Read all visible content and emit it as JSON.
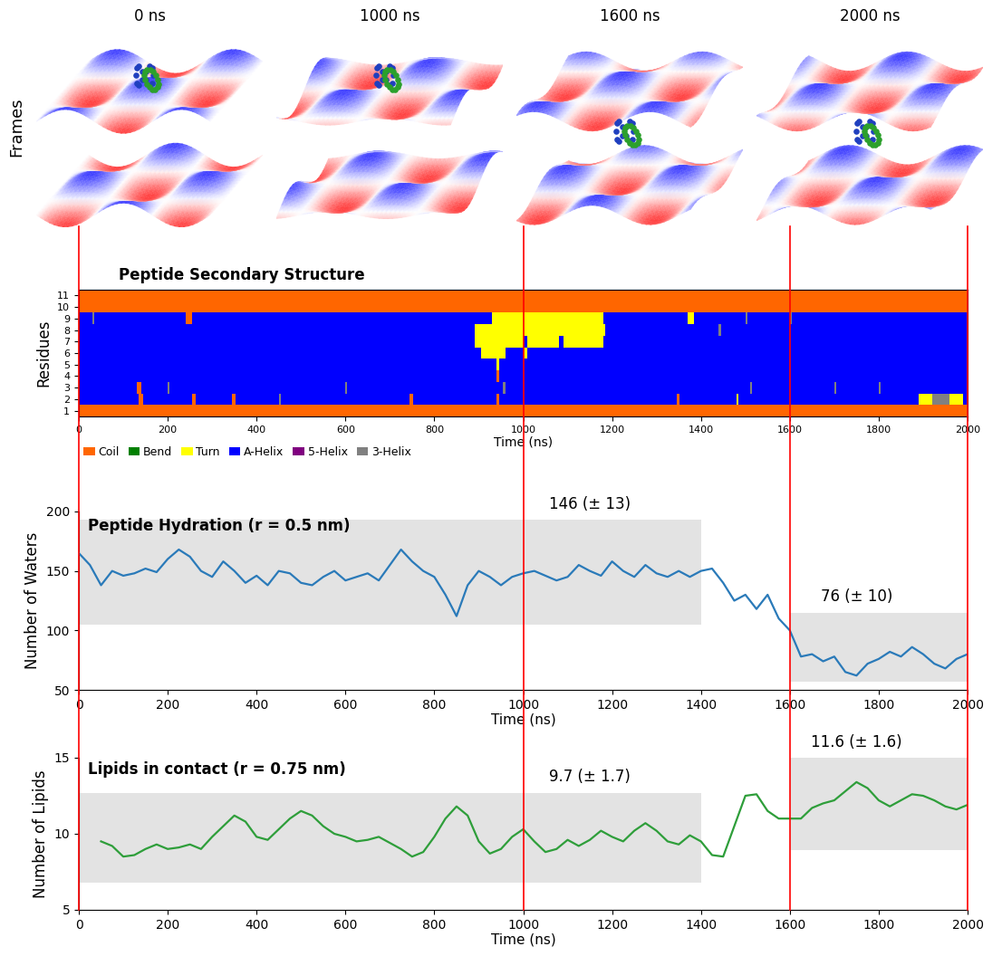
{
  "frames": {
    "label": "Frames",
    "snapshots": [
      {
        "time": 0,
        "label": "0 ns"
      },
      {
        "time": 1000,
        "label": "1000 ns"
      },
      {
        "time": 1600,
        "label": "1600 ns"
      },
      {
        "time": 2000,
        "label": "2000 ns"
      }
    ]
  },
  "chart_data": [
    {
      "type": "heatmap",
      "title": "Peptide Secondary Structure",
      "xlabel": "Time (ns)",
      "ylabel": "Residues",
      "xlim": [
        0,
        2000
      ],
      "xticks": [
        0,
        200,
        400,
        600,
        800,
        1000,
        1200,
        1400,
        1600,
        1800,
        2000
      ],
      "ylim": [
        0.5,
        11.5
      ],
      "yticks": [
        1,
        2,
        3,
        4,
        5,
        6,
        7,
        8,
        9,
        10,
        11
      ],
      "states": [
        {
          "name": "Coil",
          "color": "#ff6600"
        },
        {
          "name": "Bend",
          "color": "#008000"
        },
        {
          "name": "Turn",
          "color": "#ffff00"
        },
        {
          "name": "A-Helix",
          "color": "#0000ff"
        },
        {
          "name": "5-Helix",
          "color": "#800080"
        },
        {
          "name": "3-Helix",
          "color": "#808080"
        }
      ],
      "rows": [
        {
          "residue": 1,
          "base": "Coil",
          "segments": []
        },
        {
          "residue": 2,
          "base": "A-Helix",
          "segments": [
            [
              135,
              145,
              "Coil"
            ],
            [
              255,
              262,
              "Coil"
            ],
            [
              345,
              352,
              "Coil"
            ],
            [
              450,
              455,
              "3-Helix"
            ],
            [
              745,
              752,
              "Coil"
            ],
            [
              940,
              946,
              "Coil"
            ],
            [
              1345,
              1352,
              "Coil"
            ],
            [
              1480,
              1485,
              "Turn"
            ],
            [
              1890,
              1920,
              "Turn"
            ],
            [
              1920,
              1960,
              "3-Helix"
            ],
            [
              1960,
              1990,
              "Turn"
            ]
          ]
        },
        {
          "residue": 3,
          "base": "A-Helix",
          "segments": [
            [
              130,
              140,
              "Coil"
            ],
            [
              200,
              204,
              "3-Helix"
            ],
            [
              600,
              604,
              "3-Helix"
            ],
            [
              955,
              960,
              "3-Helix"
            ],
            [
              1510,
              1515,
              "3-Helix"
            ],
            [
              1700,
              1704,
              "3-Helix"
            ],
            [
              1800,
              1804,
              "3-Helix"
            ]
          ]
        },
        {
          "residue": 4,
          "base": "A-Helix",
          "segments": [
            [
              940,
              945,
              "Coil"
            ]
          ]
        },
        {
          "residue": 5,
          "base": "A-Helix",
          "segments": [
            [
              940,
              946,
              "Turn"
            ]
          ]
        },
        {
          "residue": 6,
          "base": "A-Helix",
          "segments": [
            [
              905,
              960,
              "Turn"
            ],
            [
              1000,
              1010,
              "Turn"
            ]
          ]
        },
        {
          "residue": 7,
          "base": "A-Helix",
          "segments": [
            [
              890,
              1180,
              "Turn"
            ],
            [
              1000,
              1010,
              "A-Helix"
            ],
            [
              1080,
              1090,
              "A-Helix"
            ]
          ]
        },
        {
          "residue": 8,
          "base": "A-Helix",
          "segments": [
            [
              890,
              1185,
              "Turn"
            ],
            [
              1440,
              1445,
              "3-Helix"
            ]
          ]
        },
        {
          "residue": 9,
          "base": "A-Helix",
          "segments": [
            [
              30,
              35,
              "3-Helix"
            ],
            [
              240,
              255,
              "Coil"
            ],
            [
              930,
              1180,
              "Turn"
            ],
            [
              1370,
              1385,
              "Turn"
            ],
            [
              1500,
              1505,
              "3-Helix"
            ],
            [
              1600,
              1604,
              "3-Helix"
            ]
          ]
        },
        {
          "residue": 10,
          "base": "Coil",
          "segments": []
        },
        {
          "residue": 11,
          "base": "Coil",
          "segments": []
        }
      ]
    },
    {
      "type": "line",
      "title": "Peptide Hydration (r = 0.5 nm)",
      "xlabel": "Time (ns)",
      "ylabel": "Number of Waters",
      "xlim": [
        0,
        2000
      ],
      "xticks": [
        0,
        200,
        400,
        600,
        800,
        1000,
        1200,
        1400,
        1600,
        1800,
        2000
      ],
      "ylim": [
        50,
        200
      ],
      "yticks": [
        50,
        100,
        150,
        200
      ],
      "color": "#2a7ab9",
      "x": [
        0,
        25,
        50,
        75,
        100,
        125,
        150,
        175,
        200,
        225,
        250,
        275,
        300,
        325,
        350,
        375,
        400,
        425,
        450,
        475,
        500,
        525,
        550,
        575,
        600,
        625,
        650,
        675,
        700,
        725,
        750,
        775,
        800,
        825,
        850,
        875,
        900,
        925,
        950,
        975,
        1000,
        1025,
        1050,
        1075,
        1100,
        1125,
        1150,
        1175,
        1200,
        1225,
        1250,
        1275,
        1300,
        1325,
        1350,
        1375,
        1400,
        1425,
        1450,
        1475,
        1500,
        1525,
        1550,
        1575,
        1600,
        1625,
        1650,
        1675,
        1700,
        1725,
        1750,
        1775,
        1800,
        1825,
        1850,
        1875,
        1900,
        1925,
        1950,
        1975,
        2000
      ],
      "values": [
        165,
        155,
        138,
        150,
        146,
        148,
        152,
        149,
        160,
        168,
        162,
        150,
        145,
        158,
        150,
        140,
        146,
        138,
        150,
        148,
        140,
        138,
        145,
        150,
        142,
        145,
        148,
        142,
        155,
        168,
        158,
        150,
        145,
        130,
        112,
        138,
        150,
        145,
        138,
        145,
        148,
        150,
        146,
        142,
        145,
        155,
        150,
        146,
        158,
        150,
        145,
        155,
        148,
        145,
        150,
        145,
        150,
        152,
        140,
        125,
        130,
        118,
        130,
        110,
        100,
        78,
        80,
        74,
        78,
        65,
        62,
        72,
        76,
        82,
        78,
        86,
        80,
        72,
        68,
        76,
        80
      ],
      "bands": [
        {
          "x": [
            0,
            1400
          ],
          "y": [
            105,
            193
          ],
          "label": "146 (± 13)"
        },
        {
          "x": [
            1600,
            2000
          ],
          "y": [
            57,
            115
          ],
          "label": "76 (± 10)"
        }
      ]
    },
    {
      "type": "line",
      "title": "Lipids in contact (r = 0.75 nm)",
      "xlabel": "Time (ns)",
      "ylabel": "Number of Lipids",
      "xlim": [
        0,
        2000
      ],
      "xticks": [
        0,
        200,
        400,
        600,
        800,
        1000,
        1200,
        1400,
        1600,
        1800,
        2000
      ],
      "ylim": [
        5,
        15
      ],
      "yticks": [
        5,
        10,
        15
      ],
      "color": "#2e9e3a",
      "x": [
        50,
        75,
        100,
        125,
        150,
        175,
        200,
        225,
        250,
        275,
        300,
        325,
        350,
        375,
        400,
        425,
        450,
        475,
        500,
        525,
        550,
        575,
        600,
        625,
        650,
        675,
        700,
        725,
        750,
        775,
        800,
        825,
        850,
        875,
        900,
        925,
        950,
        975,
        1000,
        1025,
        1050,
        1075,
        1100,
        1125,
        1150,
        1175,
        1200,
        1225,
        1250,
        1275,
        1300,
        1325,
        1350,
        1375,
        1400,
        1425,
        1450,
        1475,
        1500,
        1525,
        1550,
        1575,
        1600,
        1625,
        1650,
        1675,
        1700,
        1725,
        1750,
        1775,
        1800,
        1825,
        1850,
        1875,
        1900,
        1925,
        1950,
        1975,
        2000
      ],
      "values": [
        9.5,
        9.2,
        8.5,
        8.6,
        9.0,
        9.3,
        9.0,
        9.1,
        9.3,
        9.0,
        9.8,
        10.5,
        11.2,
        10.8,
        9.8,
        9.6,
        10.3,
        11.0,
        11.5,
        11.2,
        10.5,
        10.0,
        9.8,
        9.5,
        9.6,
        9.8,
        9.4,
        9.0,
        8.5,
        8.8,
        9.8,
        11.0,
        11.8,
        11.2,
        9.5,
        8.7,
        9.0,
        9.8,
        10.3,
        9.5,
        8.8,
        9.0,
        9.6,
        9.2,
        9.6,
        10.2,
        9.8,
        9.5,
        10.2,
        10.7,
        10.2,
        9.5,
        9.3,
        9.9,
        9.5,
        8.6,
        8.5,
        10.5,
        12.5,
        12.6,
        11.5,
        11.0,
        11.0,
        11.0,
        11.7,
        12.0,
        12.2,
        12.8,
        13.4,
        13.0,
        12.2,
        11.8,
        12.2,
        12.6,
        12.5,
        12.2,
        11.8,
        11.6,
        11.9
      ],
      "bands": [
        {
          "x": [
            0,
            1400
          ],
          "y": [
            6.8,
            12.7
          ],
          "label": "9.7 (± 1.7)"
        },
        {
          "x": [
            1600,
            2000
          ],
          "y": [
            8.9,
            15.0
          ],
          "label": "11.6 (± 1.6)"
        }
      ]
    }
  ]
}
